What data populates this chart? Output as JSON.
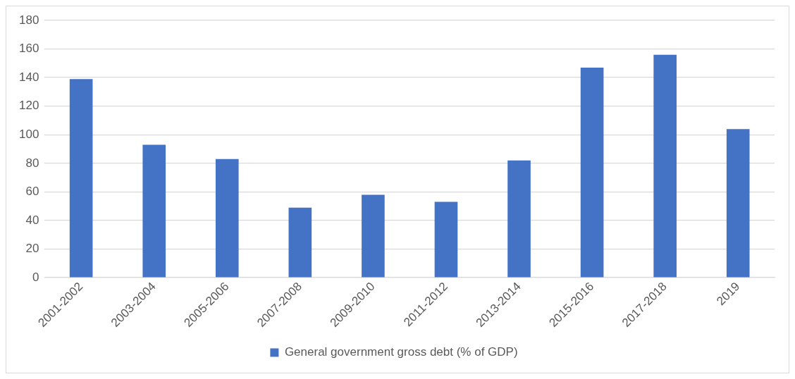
{
  "chart_data": {
    "type": "bar",
    "categories": [
      "2001-2002",
      "2003-2004",
      "2005-2006",
      "2007-2008",
      "2009-2010",
      "2011-2012",
      "2013-2014",
      "2015-2016",
      "2017-2018",
      "2019"
    ],
    "series": [
      {
        "name": "General government gross debt (% of GDP)",
        "color": "#4472c4",
        "values": [
          139,
          93,
          83,
          49,
          58,
          53,
          82,
          147,
          156,
          104
        ]
      }
    ],
    "ylim": [
      0,
      180
    ],
    "yticks": [
      0,
      20,
      40,
      60,
      80,
      100,
      120,
      140,
      160,
      180
    ],
    "grid": "y",
    "legend": "bottom"
  }
}
